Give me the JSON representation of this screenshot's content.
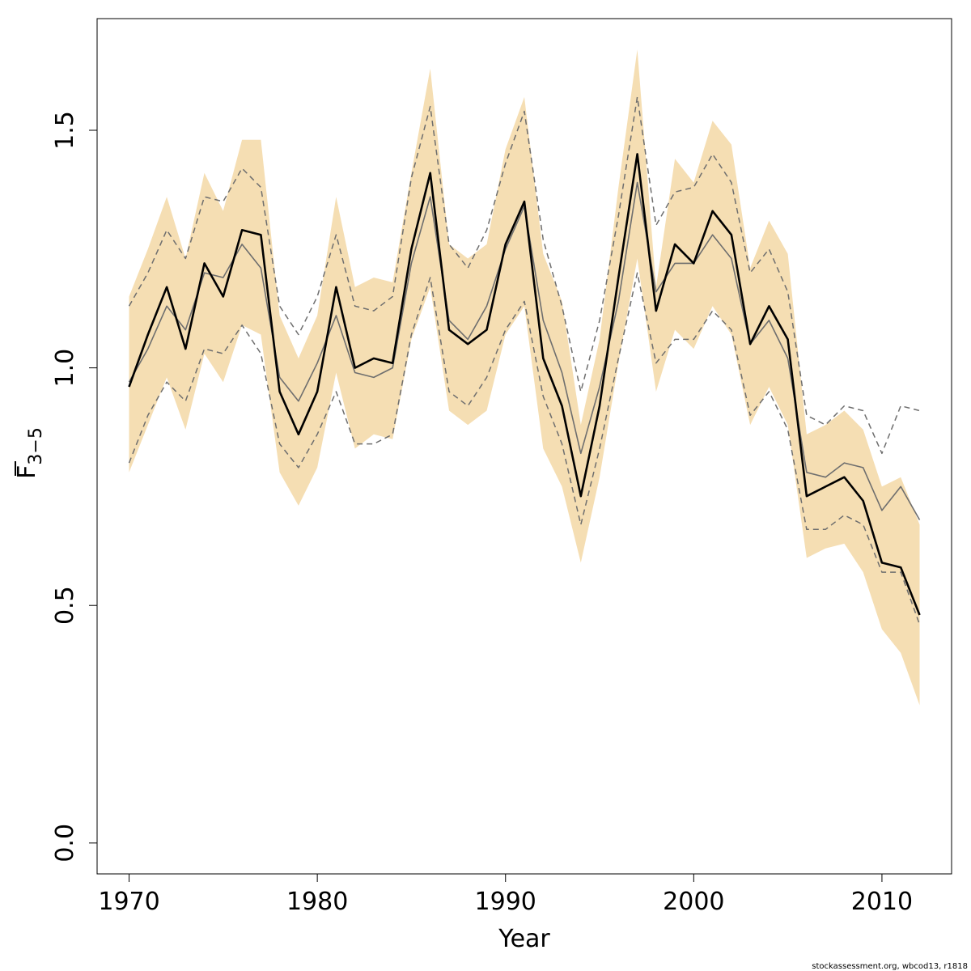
{
  "chart_data": {
    "type": "line",
    "xlabel": "Year",
    "ylabel_main": "F",
    "ylabel_sub": "3−5",
    "ylabel_overline": true,
    "xlim": [
      1968.3,
      2013.7
    ],
    "ylim": [
      -0.065,
      1.735
    ],
    "x_ticks": [
      1970,
      1980,
      1990,
      2000,
      2010
    ],
    "y_ticks": [
      0.0,
      0.5,
      1.0,
      1.5
    ],
    "y_tick_labels": [
      "0.0",
      "0.5",
      "1.0",
      "1.5"
    ],
    "grid": false,
    "legend": "none",
    "colors": {
      "band": "#f5deb3",
      "main_line": "#000000",
      "secondary_line": "#6e6e6e",
      "bounds_line": "#6e6e6e"
    },
    "x": [
      1970,
      1971,
      1972,
      1973,
      1974,
      1975,
      1976,
      1977,
      1978,
      1979,
      1980,
      1981,
      1982,
      1983,
      1984,
      1985,
      1986,
      1987,
      1988,
      1989,
      1990,
      1991,
      1992,
      1993,
      1994,
      1995,
      1996,
      1997,
      1998,
      1999,
      2000,
      2001,
      2002,
      2003,
      2004,
      2005,
      2006,
      2007,
      2008,
      2009,
      2010,
      2011,
      2012
    ],
    "series": [
      {
        "role": "ci_band",
        "upper": [
          1.15,
          1.25,
          1.36,
          1.23,
          1.41,
          1.33,
          1.48,
          1.48,
          1.11,
          1.02,
          1.11,
          1.36,
          1.17,
          1.19,
          1.18,
          1.41,
          1.63,
          1.26,
          1.23,
          1.26,
          1.46,
          1.57,
          1.24,
          1.14,
          0.88,
          1.06,
          1.38,
          1.67,
          1.17,
          1.44,
          1.39,
          1.52,
          1.47,
          1.21,
          1.31,
          1.24,
          0.86,
          0.88,
          0.91,
          0.87,
          0.75,
          0.77,
          0.67
        ],
        "lower": [
          0.78,
          0.88,
          0.98,
          0.87,
          1.03,
          0.97,
          1.09,
          1.07,
          0.78,
          0.71,
          0.79,
          0.99,
          0.83,
          0.86,
          0.85,
          1.06,
          1.17,
          0.91,
          0.88,
          0.91,
          1.07,
          1.13,
          0.83,
          0.75,
          0.59,
          0.77,
          1.01,
          1.23,
          0.95,
          1.08,
          1.04,
          1.13,
          1.07,
          0.88,
          0.96,
          0.88,
          0.6,
          0.62,
          0.63,
          0.57,
          0.45,
          0.4,
          0.29
        ]
      },
      {
        "role": "main",
        "values": [
          0.96,
          1.07,
          1.17,
          1.04,
          1.22,
          1.15,
          1.29,
          1.28,
          0.95,
          0.86,
          0.95,
          1.17,
          1.0,
          1.02,
          1.01,
          1.25,
          1.41,
          1.08,
          1.05,
          1.08,
          1.26,
          1.35,
          1.02,
          0.92,
          0.73,
          0.92,
          1.19,
          1.45,
          1.12,
          1.26,
          1.22,
          1.33,
          1.28,
          1.05,
          1.13,
          1.06,
          0.73,
          0.75,
          0.77,
          0.72,
          0.59,
          0.58,
          0.48
        ]
      },
      {
        "role": "secondary",
        "values": [
          0.97,
          1.04,
          1.13,
          1.08,
          1.2,
          1.19,
          1.26,
          1.21,
          0.98,
          0.93,
          1.01,
          1.11,
          0.99,
          0.98,
          1.0,
          1.22,
          1.36,
          1.1,
          1.06,
          1.13,
          1.25,
          1.34,
          1.1,
          0.99,
          0.82,
          0.96,
          1.14,
          1.39,
          1.16,
          1.22,
          1.22,
          1.28,
          1.23,
          1.05,
          1.1,
          1.02,
          0.78,
          0.77,
          0.8,
          0.79,
          0.7,
          0.75,
          0.68
        ]
      },
      {
        "role": "upper_dashed",
        "values": [
          1.13,
          1.2,
          1.29,
          1.23,
          1.36,
          1.35,
          1.42,
          1.38,
          1.13,
          1.07,
          1.15,
          1.28,
          1.13,
          1.12,
          1.15,
          1.4,
          1.55,
          1.26,
          1.21,
          1.29,
          1.43,
          1.54,
          1.27,
          1.13,
          0.95,
          1.1,
          1.32,
          1.57,
          1.3,
          1.37,
          1.38,
          1.45,
          1.39,
          1.2,
          1.25,
          1.16,
          0.9,
          0.88,
          0.92,
          0.91,
          0.82,
          0.92,
          0.91
        ]
      },
      {
        "role": "lower_dashed",
        "values": [
          0.8,
          0.9,
          0.97,
          0.93,
          1.04,
          1.03,
          1.09,
          1.03,
          0.84,
          0.79,
          0.86,
          0.95,
          0.84,
          0.84,
          0.86,
          1.07,
          1.19,
          0.95,
          0.92,
          0.98,
          1.08,
          1.14,
          0.94,
          0.84,
          0.67,
          0.83,
          1.02,
          1.2,
          1.01,
          1.06,
          1.06,
          1.12,
          1.08,
          0.9,
          0.95,
          0.87,
          0.66,
          0.66,
          0.69,
          0.67,
          0.57,
          0.57,
          0.46
        ]
      }
    ]
  },
  "footer": {
    "credit": "stockassessment.org, wbcod13, r1818"
  }
}
